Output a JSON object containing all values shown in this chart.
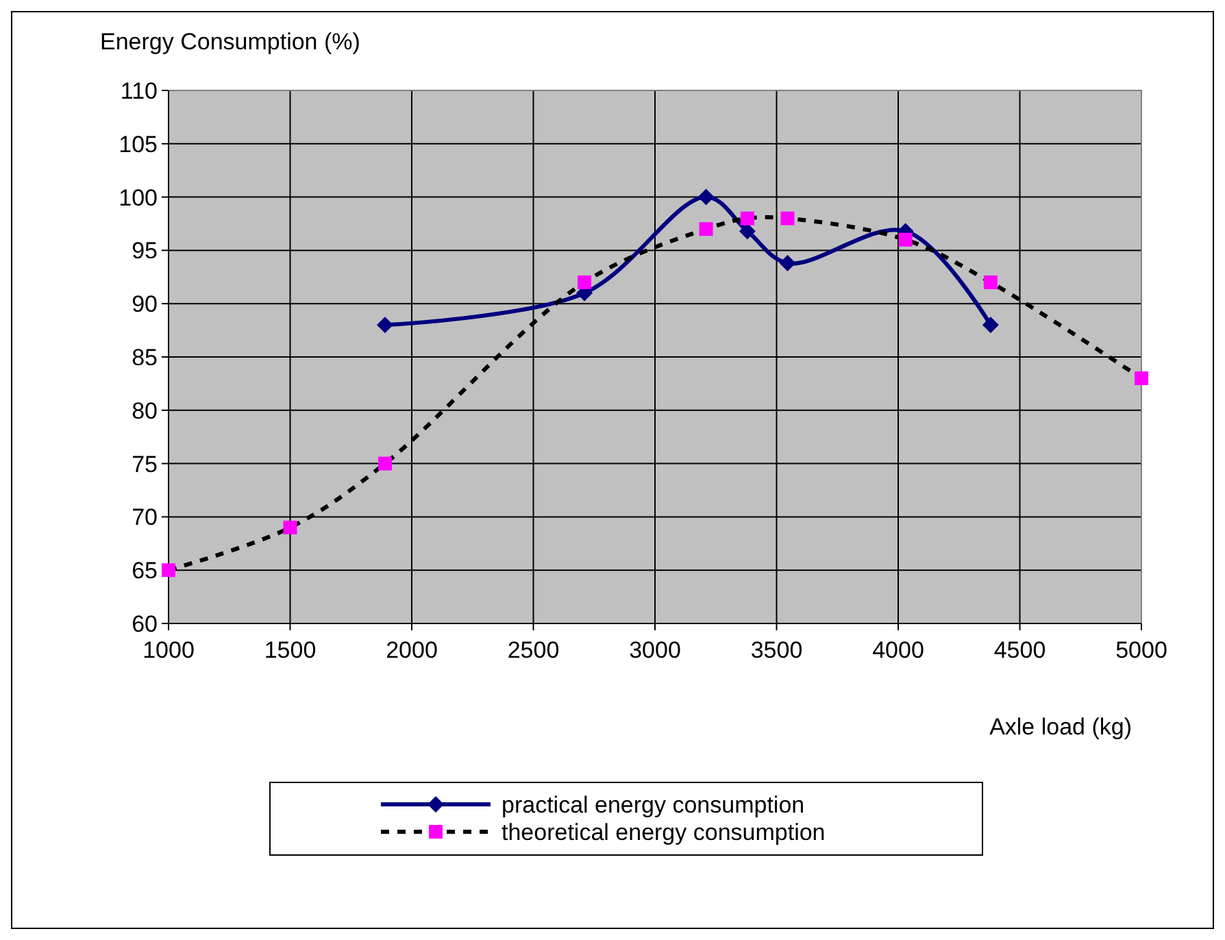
{
  "chart_data": {
    "type": "line",
    "xlabel": "Axle load (kg)",
    "ylabel": "Energy Consumption (%)",
    "xlim": [
      1000,
      5000
    ],
    "xticks": [
      1000,
      1500,
      2000,
      2500,
      3000,
      3500,
      4000,
      4500,
      5000
    ],
    "ylim": [
      60,
      110
    ],
    "yticks": [
      60,
      65,
      70,
      75,
      80,
      85,
      90,
      95,
      100,
      105,
      110
    ],
    "grid": true,
    "legend": "bottom",
    "series": [
      {
        "name": "practical energy consumption",
        "color": "#000080",
        "marker": "diamond",
        "line_style": "solid",
        "x": [
          1890,
          2710,
          3210,
          3380,
          3545,
          4030,
          4380
        ],
        "values": [
          88,
          91,
          100,
          96.8,
          93.8,
          96.8,
          88
        ]
      },
      {
        "name": "theoretical energy consumption",
        "color": "#ff00ff",
        "marker": "square",
        "line_style": "dashed",
        "x": [
          1000,
          1500,
          1890,
          2710,
          3210,
          3380,
          3545,
          4030,
          4380,
          5000
        ],
        "values": [
          65,
          69,
          75,
          92,
          97,
          98,
          98,
          96,
          92,
          83
        ]
      }
    ]
  }
}
